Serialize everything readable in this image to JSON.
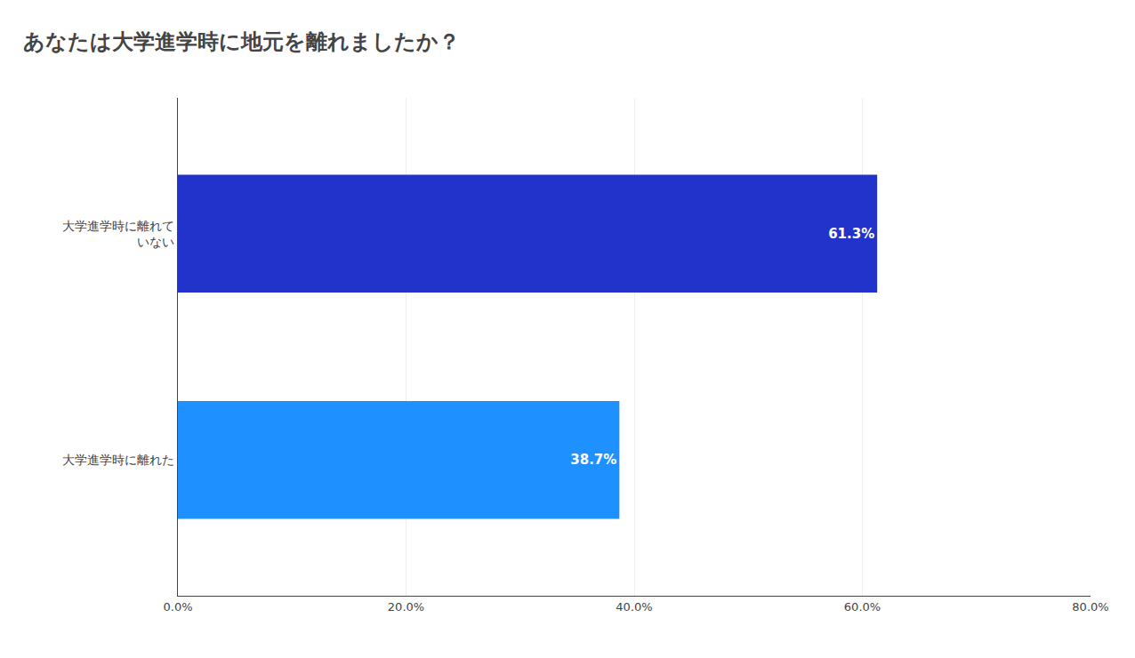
{
  "chart_data": {
    "type": "bar",
    "orientation": "horizontal",
    "title": "あなたは大学進学時に地元を離れましたか？",
    "categories": [
      "大学進学時に離れた",
      "大学進学時に離れて\nいない"
    ],
    "values": [
      38.7,
      61.3
    ],
    "value_labels": [
      "38.7%",
      "61.3%"
    ],
    "data_labels": true,
    "colors": [
      "#1E90FF",
      "#2233CC"
    ],
    "xlim": [
      0,
      80
    ],
    "xticks": [
      {
        "value": 0,
        "label": "0.0%"
      },
      {
        "value": 20,
        "label": "20.0%"
      },
      {
        "value": 40,
        "label": "40.0%"
      },
      {
        "value": 60,
        "label": "60.0%"
      },
      {
        "value": 80,
        "label": "80.0%"
      }
    ],
    "grid": true
  }
}
